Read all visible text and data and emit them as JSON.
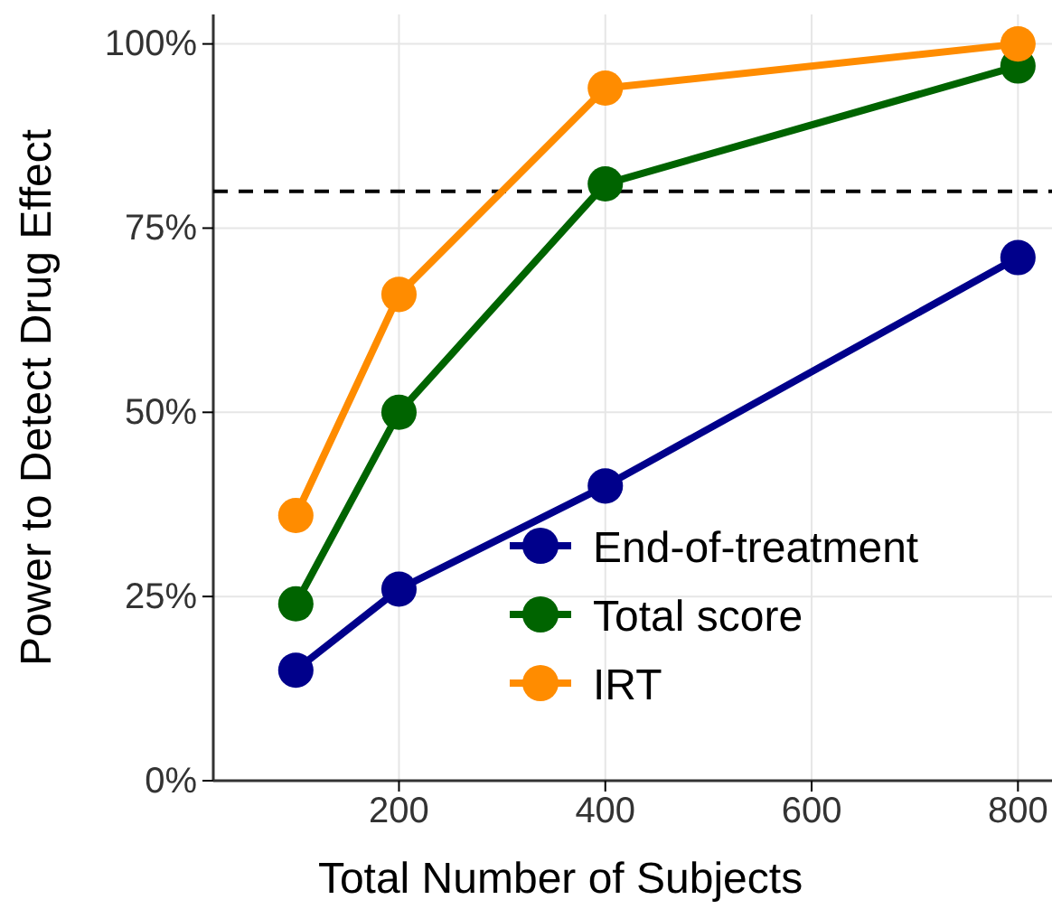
{
  "chart_data": {
    "type": "line",
    "xlabel": "Total Number of Subjects",
    "ylabel": "Power to Detect Drug Effect",
    "x": [
      100,
      200,
      400,
      800
    ],
    "series": [
      {
        "name": "End-of-treatment",
        "color": "#00008b",
        "values": [
          15,
          26,
          40,
          71
        ]
      },
      {
        "name": "Total score",
        "color": "#006400",
        "values": [
          24,
          50,
          81,
          97
        ]
      },
      {
        "name": "IRT",
        "color": "#ff8c00",
        "values": [
          36,
          66,
          94,
          100
        ]
      }
    ],
    "xlim": [
      20,
      833
    ],
    "xticks": [
      200,
      400,
      600,
      800
    ],
    "ylim": [
      0,
      104
    ],
    "yticks": [
      {
        "value": 0,
        "label": "0%"
      },
      {
        "value": 25,
        "label": "25%"
      },
      {
        "value": 50,
        "label": "50%"
      },
      {
        "value": 75,
        "label": "75%"
      },
      {
        "value": 100,
        "label": "100%"
      }
    ],
    "ref_lines": [
      {
        "axis": "y",
        "value": 80,
        "line_style": "dashed",
        "color": "#000000"
      }
    ],
    "grid": true,
    "legend": "bottom right",
    "marker": "circle",
    "line_style": "solid"
  }
}
